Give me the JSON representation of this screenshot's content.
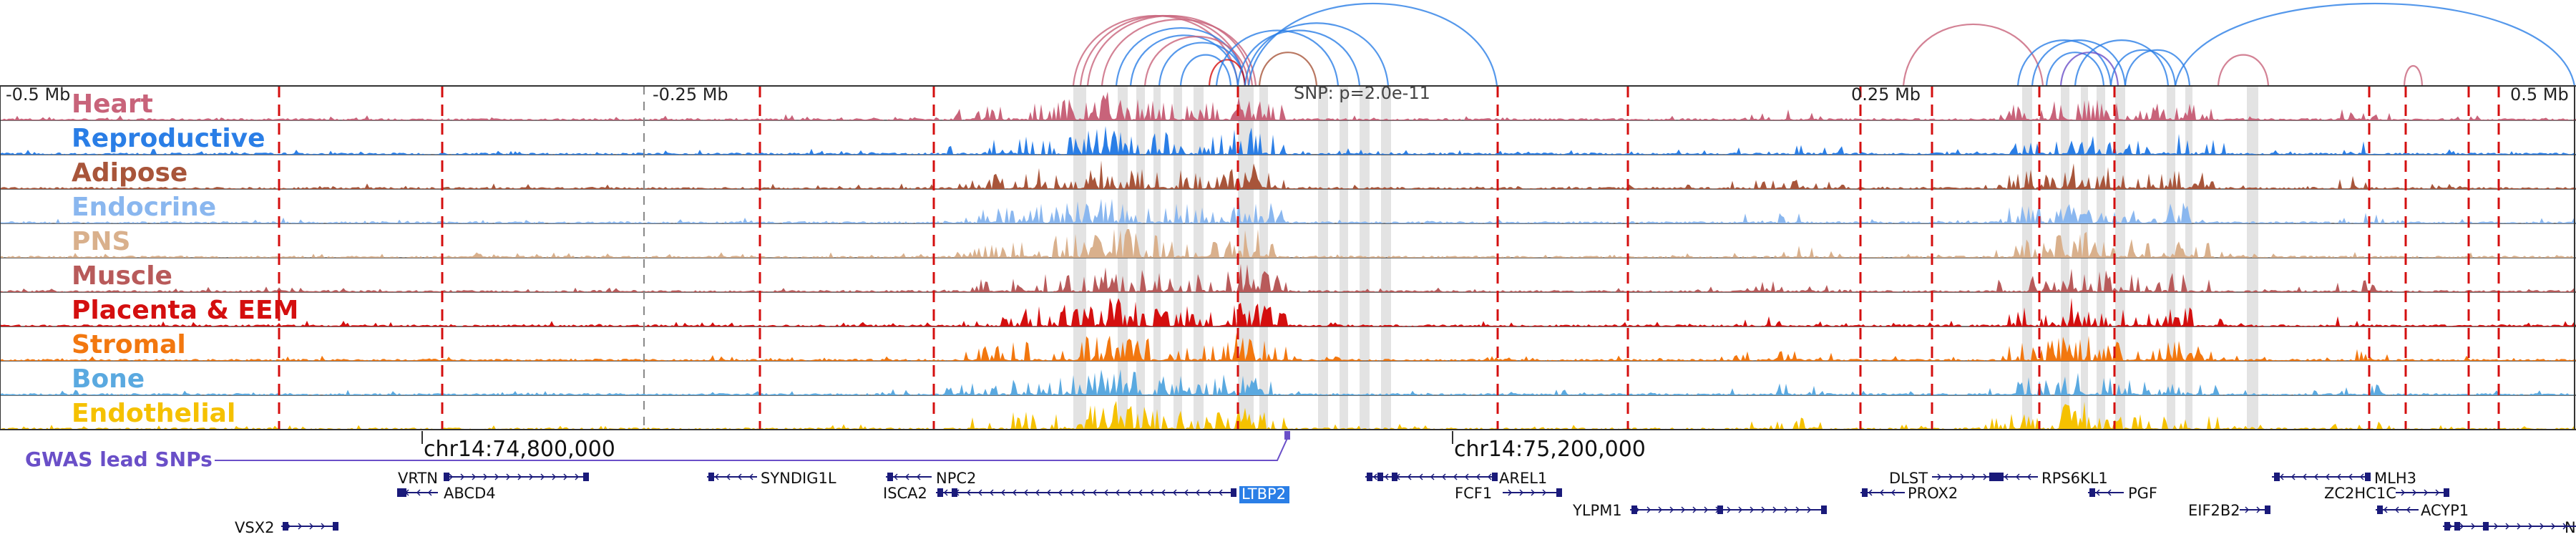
{
  "axis": {
    "ticks": [
      "-0.5 Mb",
      "-0.25 Mb",
      "0.25 Mb",
      "0.5 Mb"
    ],
    "snp_label": "SNP: p=2.0e-11"
  },
  "tracks": [
    {
      "name": "Heart",
      "color": "#c8637a"
    },
    {
      "name": "Reproductive",
      "color": "#2a7ee6"
    },
    {
      "name": "Adipose",
      "color": "#a8553a"
    },
    {
      "name": "Endocrine",
      "color": "#8ab7ef"
    },
    {
      "name": "PNS",
      "color": "#d9b08c"
    },
    {
      "name": "Muscle",
      "color": "#b85a5a"
    },
    {
      "name": "Placenta & EEM",
      "color": "#d40f0f"
    },
    {
      "name": "Stromal",
      "color": "#f2770f"
    },
    {
      "name": "Bone",
      "color": "#5aa9e0"
    },
    {
      "name": "Endothelial",
      "color": "#f5c100"
    }
  ],
  "gwas_label": "GWAS lead SNPs",
  "coords": [
    "chr14:74,800,000",
    "chr14:75,200,000"
  ],
  "genes": {
    "VRTN": "VRTN",
    "ABCD4": "ABCD4",
    "SYNDIG1L": "SYNDIG1L",
    "NPC2": "NPC2",
    "ISCA2": "ISCA2",
    "LTBP2": "LTBP2",
    "VSX2": "VSX2",
    "AREL1": "AREL1",
    "FCF1": "FCF1",
    "YLPM1": "YLPM1",
    "DLST": "DLST",
    "RPS6KL1": "RPS6KL1",
    "PROX2": "PROX2",
    "PGF": "PGF",
    "EIF2B2": "EIF2B2",
    "MLH3": "MLH3",
    "ZC2HC1C": "ZC2HC1C",
    "ACYP1": "ACYP1",
    "N": "N"
  },
  "colors": {
    "accent_gwas": "#6a4fc8",
    "gene_highlight": "#2a7ee6",
    "gene_body": "#1a1a7a",
    "dashed_line": "#d40f0f",
    "highlight_band": "#d9d9d9"
  }
}
